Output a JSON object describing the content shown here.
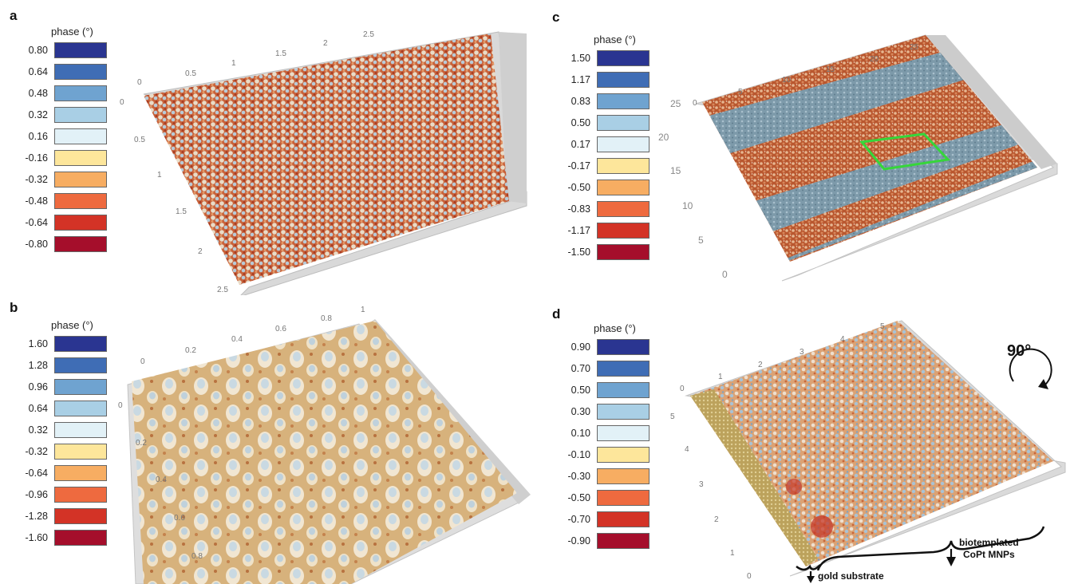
{
  "panels": [
    {
      "id": "a",
      "label": "a",
      "legend_title": "phase (°)",
      "legend": [
        "0.80",
        "0.64",
        "0.48",
        "0.32",
        "0.16",
        "-0.16",
        "-0.32",
        "-0.48",
        "-0.64",
        "-0.80"
      ],
      "x_ticks": [
        "0",
        "0.5",
        "1",
        "1.5",
        "2",
        "2.5"
      ],
      "y_ticks": [
        "0",
        "0.5",
        "1",
        "1.5",
        "2",
        "2.5"
      ]
    },
    {
      "id": "b",
      "label": "b",
      "legend_title": "phase (°)",
      "legend": [
        "1.60",
        "1.28",
        "0.96",
        "0.64",
        "0.32",
        "-0.32",
        "-0.64",
        "-0.96",
        "-1.28",
        "-1.60"
      ],
      "x_ticks": [
        "0",
        "0.2",
        "0.4",
        "0.6",
        "0.8",
        "1"
      ],
      "y_ticks": [
        "0",
        "0.2",
        "0.4",
        "0.6",
        "0.8"
      ]
    },
    {
      "id": "c",
      "label": "c",
      "legend_title": "phase (°)",
      "legend": [
        "1.50",
        "1.17",
        "0.83",
        "0.50",
        "0.17",
        "-0.17",
        "-0.50",
        "-0.83",
        "-1.17",
        "-1.50"
      ],
      "x_ticks": [
        "0",
        "5",
        "10",
        "15",
        "20",
        "25"
      ],
      "y_ticks": [
        "25",
        "20",
        "15",
        "10",
        "5",
        "0"
      ]
    },
    {
      "id": "d",
      "label": "d",
      "legend_title": "phase (°)",
      "legend": [
        "0.90",
        "0.70",
        "0.50",
        "0.30",
        "0.10",
        "-0.10",
        "-0.30",
        "-0.50",
        "-0.70",
        "-0.90"
      ],
      "x_ticks": [
        "0",
        "1",
        "2",
        "3",
        "4",
        "5"
      ],
      "y_ticks": [
        "5",
        "4",
        "3",
        "2",
        "1",
        "0"
      ],
      "rotation_label": "90°",
      "annotation_cop": [
        "biotemplated",
        "CoPt MNPs"
      ],
      "annotation_gold": "gold substrate"
    }
  ],
  "legend_colors": [
    "#2a3591",
    "#3f6db5",
    "#6fa3d0",
    "#a9cfe5",
    "#e2f1f7",
    "#fde69b",
    "#f7ad62",
    "#ee6a3f",
    "#d33326",
    "#a50e2b"
  ]
}
